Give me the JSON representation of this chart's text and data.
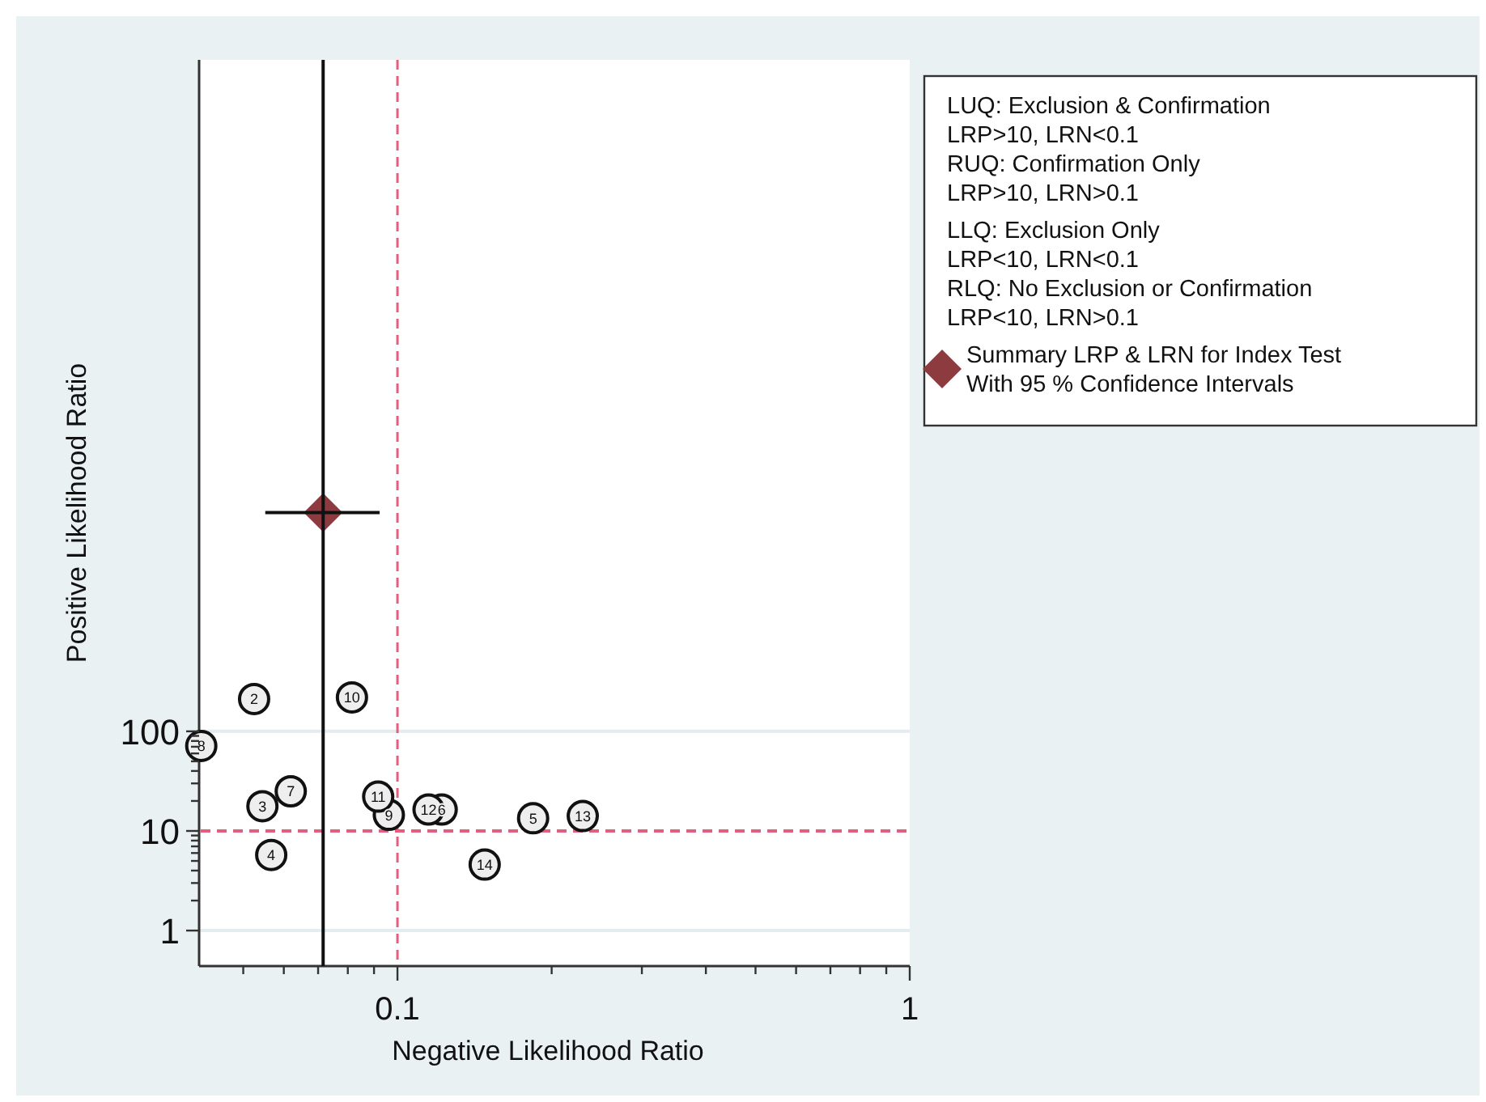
{
  "chart_data": {
    "type": "scatter",
    "xlabel": "Negative Likelihood Ratio",
    "ylabel": "Positive Likelihood Ratio",
    "log": "xy",
    "xlim": [
      0.041,
      1
    ],
    "ylim": [
      0.44,
      550000000
    ],
    "xticks": [
      {
        "value": 0.05,
        "label": null
      },
      {
        "value": 0.06,
        "label": null
      },
      {
        "value": 0.07,
        "label": null
      },
      {
        "value": 0.08,
        "label": null
      },
      {
        "value": 0.09,
        "label": null
      },
      0.1,
      {
        "value": 0.2,
        "label": null
      },
      {
        "value": 0.3,
        "label": null
      },
      {
        "value": 0.4,
        "label": null
      },
      {
        "value": 0.5,
        "label": null
      },
      {
        "value": 0.6,
        "label": null
      },
      {
        "value": 0.7,
        "label": null
      },
      {
        "value": 0.8,
        "label": null
      },
      {
        "value": 0.9,
        "label": null
      },
      1
    ],
    "yticks": [
      1,
      {
        "value": 2,
        "label": null
      },
      {
        "value": 3,
        "label": null
      },
      {
        "value": 4,
        "label": null
      },
      {
        "value": 5,
        "label": null
      },
      {
        "value": 6,
        "label": null
      },
      {
        "value": 7,
        "label": null
      },
      {
        "value": 8,
        "label": null
      },
      {
        "value": 9,
        "label": null
      },
      10,
      {
        "value": 20,
        "label": null
      },
      {
        "value": 30,
        "label": null
      },
      {
        "value": 40,
        "label": null
      },
      {
        "value": 50,
        "label": null
      },
      {
        "value": 60,
        "label": null
      },
      {
        "value": 70,
        "label": null
      },
      {
        "value": 80,
        "label": null
      },
      {
        "value": 90,
        "label": null
      },
      100
    ],
    "grid": "y",
    "legend": "right",
    "ref_lines": [
      {
        "axis": "x",
        "value": 0.1,
        "color": "#e0607e",
        "line_style": "dashed"
      },
      {
        "axis": "y",
        "value": 10,
        "color": "#e0607e",
        "line_style": "dashed"
      }
    ],
    "annotations": [
      "LUQ: Exclusion & Confirmation",
      "LRP>10, LRN<0.1",
      "RUQ: Confirmation Only",
      "LRP>10, LRN>0.1",
      "LLQ: Exclusion Only",
      "LRP<10, LRN<0.1",
      "RLQ: No Exclusion or Confirmation",
      "LRP<10, LRN>0.1",
      {
        "text": "2",
        "x": 0.0525,
        "y": 211
      },
      {
        "text": "3",
        "x": 0.0545,
        "y": 17.7
      },
      {
        "text": "4",
        "x": 0.0567,
        "y": 5.74
      },
      {
        "text": "5",
        "x": 0.184,
        "y": 13.4
      },
      {
        "text": "6",
        "x": 0.122,
        "y": 16.4
      },
      {
        "text": "7",
        "x": 0.0619,
        "y": 25.0
      },
      {
        "text": "8",
        "x": 0.0414,
        "y": 71.4
      },
      {
        "text": "9",
        "x": 0.0962,
        "y": 14.5
      },
      {
        "text": "10",
        "x": 0.0815,
        "y": 219
      },
      {
        "text": "11",
        "x": 0.0917,
        "y": 22.1
      },
      {
        "text": "12",
        "x": 0.115,
        "y": 16.4
      },
      {
        "text": "13",
        "x": 0.23,
        "y": 14.1
      },
      {
        "text": "14",
        "x": 0.148,
        "y": 4.59
      }
    ],
    "series": [
      {
        "marker": "circle",
        "color": "#eeeeee",
        "x": [
          0.0525,
          0.0545,
          0.0567,
          0.184,
          0.122,
          0.0619,
          0.0414,
          0.0962,
          0.0815,
          0.0917,
          0.115,
          0.23,
          0.148
        ],
        "values": [
          211,
          17.7,
          5.74,
          13.4,
          16.4,
          25.0,
          71.4,
          14.5,
          219,
          22.1,
          16.4,
          14.1,
          4.59
        ]
      },
      {
        "marker": "diamond",
        "name": "Summary LRP & LRN for Index Test\nWith 95 % Confidence Intervals",
        "color": "#8e3b3f",
        "x": [
          0.0716
        ],
        "values": [
          15700
        ],
        "errors": [
          [
            0.44,
            550000000
          ]
        ],
        "xerrors": [
          [
            0.0552,
            0.0923
          ]
        ]
      }
    ]
  }
}
